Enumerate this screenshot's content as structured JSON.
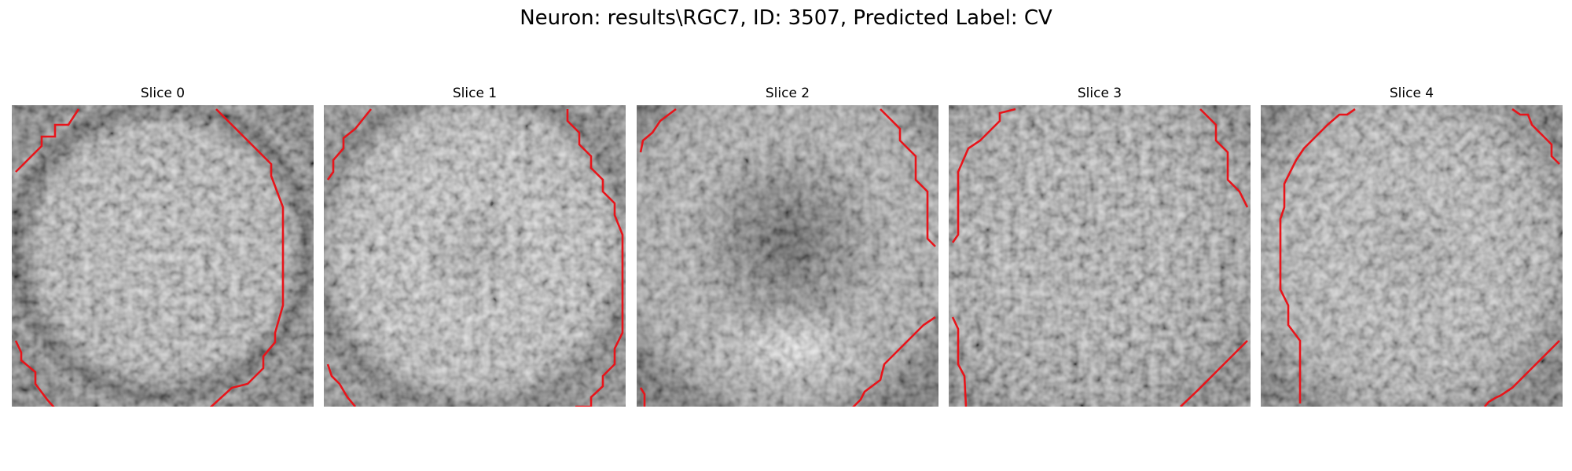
{
  "figure": {
    "suptitle": "Neuron: results\\RGC7, ID: 3507, Predicted Label: CV"
  },
  "slices": [
    {
      "label": "Slice 0"
    },
    {
      "label": "Slice 1"
    },
    {
      "label": "Slice 2"
    },
    {
      "label": "Slice 3"
    },
    {
      "label": "Slice 4"
    }
  ],
  "colors": {
    "background": "#ffffff",
    "contour": "#e8141a",
    "colormap": "gray"
  }
}
